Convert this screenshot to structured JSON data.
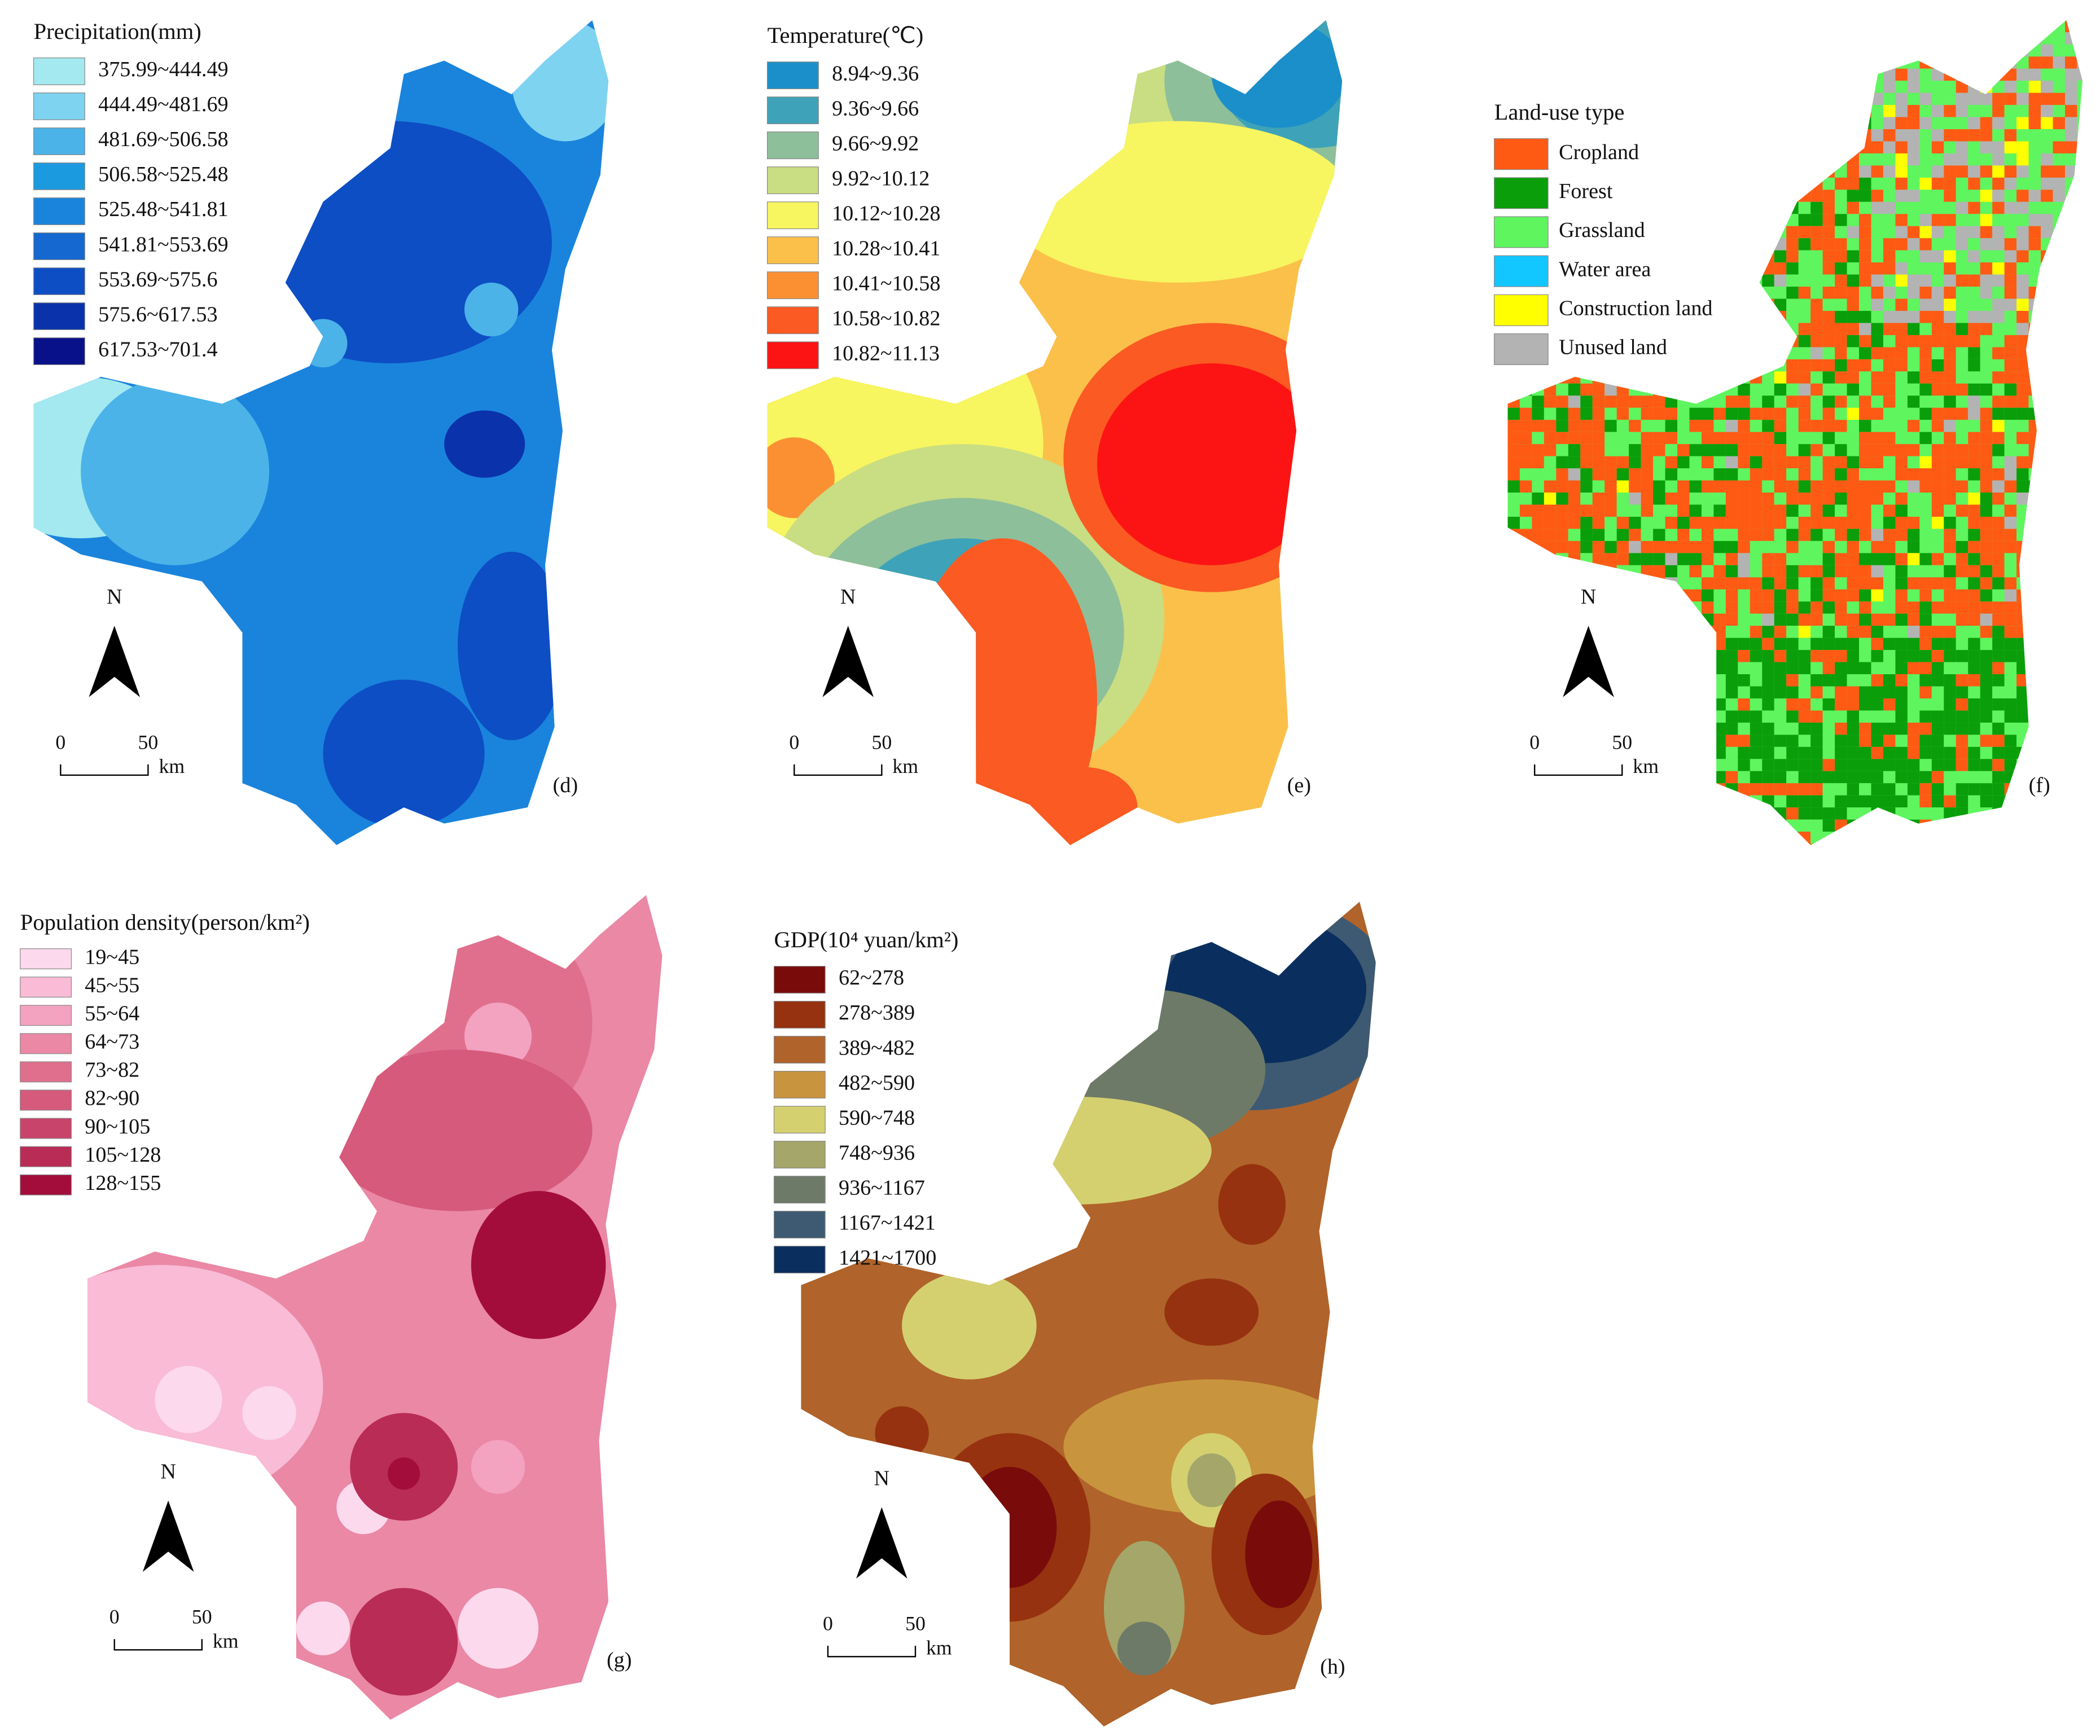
{
  "panels": [
    {
      "label": "(d)",
      "north": "N",
      "scale": {
        "start": "0",
        "mid": "50",
        "unit": "km"
      },
      "legend": {
        "title": "Precipitation(mm)",
        "items": [
          {
            "label": "375.99~444.49",
            "color": "#a3e9ef"
          },
          {
            "label": "444.49~481.69",
            "color": "#7ed3f0"
          },
          {
            "label": "481.69~506.58",
            "color": "#4bb3e8"
          },
          {
            "label": "506.58~525.48",
            "color": "#1c9ae0"
          },
          {
            "label": "525.48~541.81",
            "color": "#1a84dc"
          },
          {
            "label": "541.81~553.69",
            "color": "#1468cf"
          },
          {
            "label": "553.69~575.6",
            "color": "#0d4ec4"
          },
          {
            "label": "575.6~617.53",
            "color": "#0a32ab"
          },
          {
            "label": "617.53~701.4",
            "color": "#08108a"
          }
        ]
      }
    },
    {
      "label": "(e)",
      "north": "N",
      "scale": {
        "start": "0",
        "mid": "50",
        "unit": "km"
      },
      "legend": {
        "title": "Temperature(℃)",
        "items": [
          {
            "label": "8.94~9.36",
            "color": "#1b8fc9"
          },
          {
            "label": "9.36~9.66",
            "color": "#3ea3b8"
          },
          {
            "label": "9.66~9.92",
            "color": "#8dbf9a"
          },
          {
            "label": "9.92~10.12",
            "color": "#c9dd82"
          },
          {
            "label": "10.12~10.28",
            "color": "#f7f560"
          },
          {
            "label": "10.28~10.41",
            "color": "#fbc04a"
          },
          {
            "label": "10.41~10.58",
            "color": "#fb9033"
          },
          {
            "label": "10.58~10.82",
            "color": "#fb5a22"
          },
          {
            "label": "10.82~11.13",
            "color": "#fc1414"
          }
        ]
      }
    },
    {
      "label": "(f)",
      "north": "N",
      "scale": {
        "start": "0",
        "mid": "50",
        "unit": "km"
      },
      "legend": {
        "title": "Land-use type",
        "items": [
          {
            "label": "Cropland",
            "color": "#ff5a14"
          },
          {
            "label": "Forest",
            "color": "#0a9e0a"
          },
          {
            "label": "Grassland",
            "color": "#5ff55f"
          },
          {
            "label": "Water area",
            "color": "#12c6ff"
          },
          {
            "label": "Construction land",
            "color": "#ffff00"
          },
          {
            "label": "Unused land",
            "color": "#b3b3b3"
          }
        ]
      }
    },
    {
      "label": "(g)",
      "north": "N",
      "scale": {
        "start": "0",
        "mid": "50",
        "unit": "km"
      },
      "legend": {
        "title": "Population density(person/km²)",
        "items": [
          {
            "label": "19~45",
            "color": "#fcd9ed"
          },
          {
            "label": "45~55",
            "color": "#f9bbd6"
          },
          {
            "label": "55~64",
            "color": "#f3a2c0"
          },
          {
            "label": "64~73",
            "color": "#ea88a6"
          },
          {
            "label": "73~82",
            "color": "#e06f8e"
          },
          {
            "label": "82~90",
            "color": "#d65a7c"
          },
          {
            "label": "90~105",
            "color": "#c9446b"
          },
          {
            "label": "105~128",
            "color": "#b92c56"
          },
          {
            "label": "128~155",
            "color": "#a30d3c"
          }
        ]
      }
    },
    {
      "label": "(h)",
      "north": "N",
      "scale": {
        "start": "0",
        "mid": "50",
        "unit": "km"
      },
      "legend": {
        "title": "GDP(10⁴ yuan/km²)",
        "items": [
          {
            "label": "62~278",
            "color": "#7a0b0b"
          },
          {
            "label": "278~389",
            "color": "#96320f"
          },
          {
            "label": "389~482",
            "color": "#b0632a"
          },
          {
            "label": "482~590",
            "color": "#c9943e"
          },
          {
            "label": "590~748",
            "color": "#d4d070"
          },
          {
            "label": "748~936",
            "color": "#a4a66a"
          },
          {
            "label": "936~1167",
            "color": "#6e7a68"
          },
          {
            "label": "1167~1421",
            "color": "#3e5a72"
          },
          {
            "label": "1421~1700",
            "color": "#0a2f5e"
          }
        ]
      }
    }
  ]
}
